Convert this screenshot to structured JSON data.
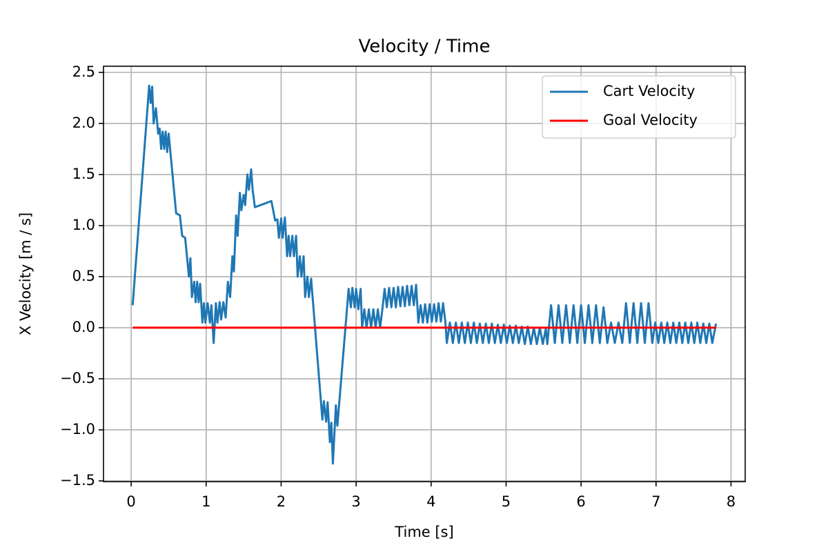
{
  "chart_data": {
    "type": "line",
    "title": "Velocity / Time",
    "x_label": "Time [s]",
    "y_label": "X Velocity [m / s]",
    "xlim": [
      -0.369,
      8.189
    ],
    "ylim": [
      -1.507,
      2.56
    ],
    "xticks": [
      0,
      1,
      2,
      3,
      4,
      5,
      6,
      7,
      8
    ],
    "yticks": [
      {
        "value": -1.5,
        "label": "−1.5"
      },
      {
        "value": -1.0,
        "label": "−1.0"
      },
      {
        "value": -0.5,
        "label": "−0.5"
      },
      {
        "value": 0.0,
        "label": "0.0"
      },
      {
        "value": 0.5,
        "label": "0.5"
      },
      {
        "value": 1.0,
        "label": "1.0"
      },
      {
        "value": 1.5,
        "label": "1.5"
      },
      {
        "value": 2.0,
        "label": "2.0"
      },
      {
        "value": 2.5,
        "label": "2.5"
      }
    ],
    "grid": true,
    "legend": "upper right",
    "series": [
      {
        "name": "Cart Velocity",
        "color": "#1f77b4",
        "x": [
          0.02,
          0.24,
          0.26,
          0.28,
          0.3,
          0.33,
          0.36,
          0.38,
          0.4,
          0.42,
          0.44,
          0.46,
          0.48,
          0.5,
          0.6,
          0.65,
          0.68,
          0.72,
          0.77,
          0.79,
          0.81,
          0.84,
          0.86,
          0.88,
          0.9,
          0.92,
          0.95,
          0.97,
          0.99,
          1.02,
          1.05,
          1.07,
          1.1,
          1.13,
          1.15,
          1.18,
          1.2,
          1.23,
          1.26,
          1.29,
          1.32,
          1.35,
          1.37,
          1.4,
          1.42,
          1.45,
          1.47,
          1.5,
          1.52,
          1.55,
          1.57,
          1.6,
          1.62,
          1.65,
          1.87,
          1.92,
          1.95,
          1.97,
          2.0,
          2.02,
          2.05,
          2.08,
          2.1,
          2.12,
          2.15,
          2.17,
          2.2,
          2.22,
          2.25,
          2.27,
          2.3,
          2.32,
          2.35,
          2.37,
          2.4,
          2.55,
          2.57,
          2.6,
          2.62,
          2.65,
          2.67,
          2.69,
          2.73,
          2.75,
          2.9,
          2.93,
          2.95,
          2.98,
          3.0,
          3.03,
          3.06,
          3.08,
          3.11,
          3.14,
          3.17,
          3.2,
          3.23,
          3.26,
          3.29,
          3.32,
          3.35,
          3.38,
          3.41,
          3.44,
          3.47,
          3.5,
          3.53,
          3.56,
          3.59,
          3.62,
          3.65,
          3.68,
          3.71,
          3.74,
          3.77,
          3.8,
          3.83,
          3.86,
          3.89,
          3.92,
          3.95,
          3.98,
          4.01,
          4.04,
          4.07,
          4.1,
          4.13,
          4.16,
          4.19,
          4.21,
          4.25,
          4.29,
          4.33,
          4.37,
          4.41,
          4.45,
          4.49,
          4.53,
          4.57,
          4.61,
          4.65,
          4.69,
          4.73,
          4.77,
          4.81,
          4.85,
          4.89,
          4.93,
          4.97,
          5.01,
          5.05,
          5.09,
          5.13,
          5.17,
          5.21,
          5.25,
          5.29,
          5.33,
          5.37,
          5.41,
          5.45,
          5.49,
          5.53,
          5.55,
          5.6,
          5.65,
          5.7,
          5.75,
          5.8,
          5.85,
          5.9,
          5.95,
          6.0,
          6.05,
          6.1,
          6.15,
          6.2,
          6.25,
          6.3,
          6.35,
          6.4,
          6.45,
          6.5,
          6.55,
          6.6,
          6.65,
          6.7,
          6.75,
          6.8,
          6.85,
          6.9,
          6.95,
          6.99,
          7.03,
          7.07,
          7.11,
          7.15,
          7.19,
          7.23,
          7.27,
          7.31,
          7.35,
          7.39,
          7.43,
          7.47,
          7.51,
          7.55,
          7.59,
          7.63,
          7.67,
          7.71,
          7.75,
          7.8
        ],
        "values": [
          0.22,
          2.37,
          2.2,
          2.36,
          2.0,
          2.15,
          1.9,
          1.95,
          1.75,
          1.92,
          1.75,
          1.92,
          1.72,
          1.9,
          1.12,
          1.1,
          0.9,
          0.88,
          0.5,
          0.68,
          0.3,
          0.45,
          0.25,
          0.45,
          0.25,
          0.43,
          0.05,
          0.24,
          0.05,
          0.24,
          0.05,
          0.22,
          -0.15,
          0.24,
          0.05,
          0.25,
          0.08,
          0.25,
          0.1,
          0.45,
          0.3,
          0.7,
          0.55,
          1.1,
          0.9,
          1.32,
          1.15,
          1.3,
          1.2,
          1.5,
          1.35,
          1.55,
          1.35,
          1.18,
          1.24,
          1.05,
          1.06,
          0.88,
          1.07,
          0.88,
          1.08,
          0.7,
          0.9,
          0.7,
          0.9,
          0.7,
          0.9,
          0.5,
          0.7,
          0.5,
          0.7,
          0.3,
          0.5,
          0.3,
          0.48,
          -0.9,
          -0.72,
          -0.92,
          -0.73,
          -1.12,
          -0.93,
          -1.33,
          -0.76,
          -0.96,
          0.38,
          0.2,
          0.39,
          0.2,
          0.38,
          0.18,
          0.38,
          0.0,
          0.18,
          0.0,
          0.18,
          0.0,
          0.18,
          0.0,
          0.18,
          0.0,
          0.18,
          0.38,
          0.2,
          0.39,
          0.2,
          0.39,
          0.2,
          0.4,
          0.21,
          0.4,
          0.21,
          0.41,
          0.22,
          0.41,
          0.22,
          0.42,
          0.05,
          0.22,
          0.05,
          0.23,
          0.05,
          0.23,
          0.06,
          0.23,
          0.06,
          0.24,
          0.06,
          0.24,
          0.06,
          -0.15,
          0.05,
          -0.15,
          0.05,
          -0.15,
          0.05,
          -0.15,
          0.05,
          -0.15,
          0.05,
          -0.15,
          0.04,
          -0.15,
          0.04,
          -0.15,
          0.04,
          -0.15,
          0.03,
          -0.15,
          0.03,
          -0.15,
          0.02,
          -0.15,
          0.02,
          -0.15,
          0.01,
          -0.16,
          0.01,
          -0.16,
          0.0,
          -0.16,
          0.0,
          -0.16,
          -0.01,
          -0.16,
          0.22,
          -0.15,
          0.22,
          -0.15,
          0.22,
          -0.15,
          0.22,
          -0.15,
          0.22,
          -0.15,
          0.22,
          -0.15,
          0.22,
          -0.15,
          0.2,
          -0.15,
          0.05,
          -0.15,
          0.05,
          -0.15,
          0.24,
          -0.15,
          0.24,
          -0.15,
          0.24,
          -0.15,
          0.24,
          -0.15,
          0.05,
          -0.15,
          0.05,
          -0.15,
          0.05,
          -0.15,
          0.05,
          -0.15,
          0.05,
          -0.15,
          0.05,
          -0.15,
          0.05,
          -0.15,
          0.05,
          -0.15,
          0.04,
          -0.15,
          0.04,
          -0.15,
          0.04
        ]
      },
      {
        "name": "Goal Velocity",
        "color": "#ff0000",
        "x": [
          0.02,
          7.8
        ],
        "values": [
          0,
          0
        ]
      }
    ]
  }
}
